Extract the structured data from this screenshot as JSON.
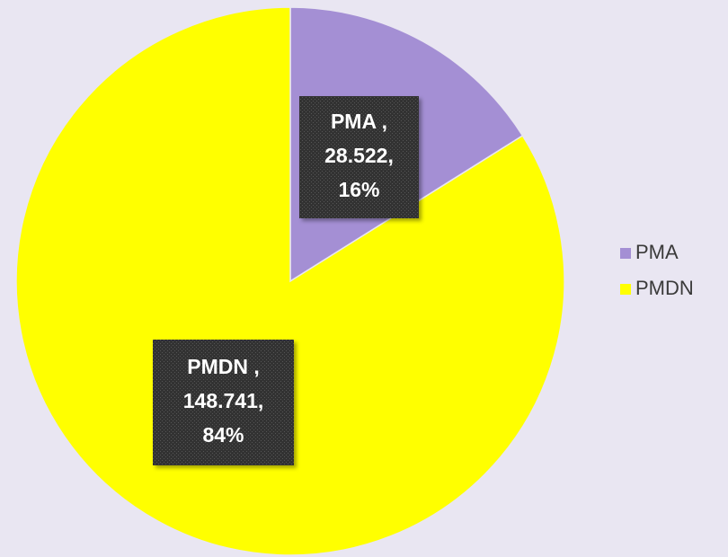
{
  "chart_data": {
    "type": "pie",
    "categories": [
      "PMA",
      "PMDN"
    ],
    "values": [
      28.522,
      148.741
    ],
    "value_labels": [
      [
        "PMA ,",
        "28.522,",
        "16%"
      ],
      [
        "PMDN ,",
        "148.741,",
        "84%"
      ]
    ],
    "colors": [
      "#a48fd4",
      "#ffff00"
    ],
    "legend": "right"
  }
}
